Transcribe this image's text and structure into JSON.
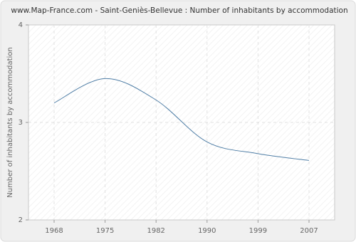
{
  "chart_data": {
    "type": "line",
    "title": "www.Map-France.com - Saint-Geniès-Bellevue : Number of inhabitants by accommodation",
    "y_label": "Number of inhabitants by accommodation",
    "categories": [
      "1968",
      "1975",
      "1982",
      "1990",
      "1999",
      "2007"
    ],
    "series": [
      {
        "name": "Number of inhabitants by accommodation",
        "color": "#4f7ea6",
        "values": [
          3.2,
          3.45,
          3.23,
          2.8,
          2.68,
          2.61
        ]
      }
    ],
    "ylim": [
      2,
      4
    ],
    "yticks": [
      2,
      3,
      4
    ],
    "grid": true
  }
}
